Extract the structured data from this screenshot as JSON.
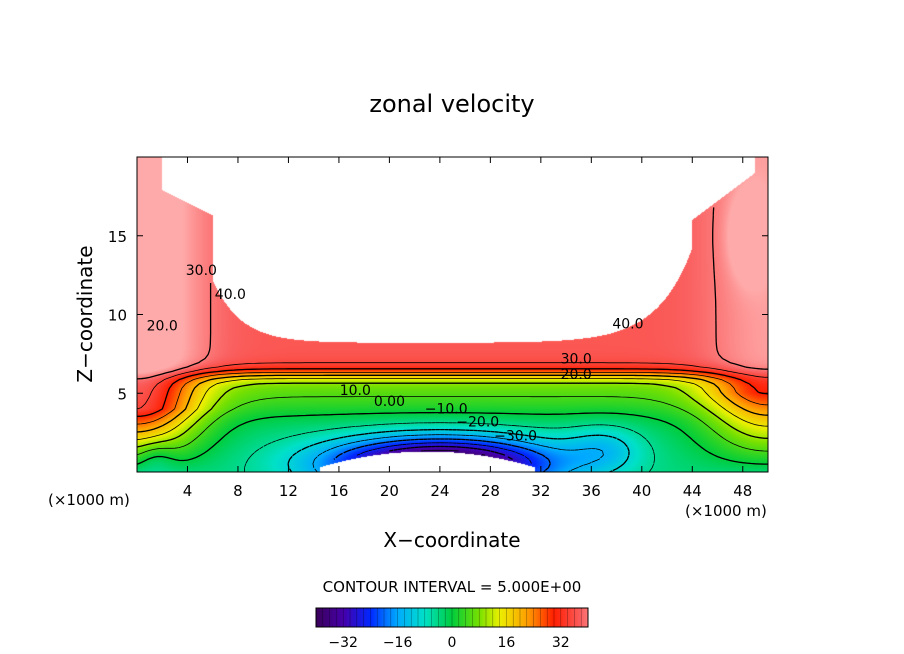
{
  "chart_data": {
    "type": "contour",
    "title": "zonal velocity",
    "xlabel": "X−coordinate",
    "ylabel": "Z−coordinate",
    "x_unit_left": "(×1000 m)",
    "x_unit_right": "(×1000 m)",
    "xlim": [
      0,
      50
    ],
    "ylim": [
      0,
      20
    ],
    "x_ticks": [
      4,
      8,
      12,
      16,
      20,
      24,
      28,
      32,
      36,
      40,
      44,
      48
    ],
    "y_ticks": [
      5,
      10,
      15
    ],
    "contour_interval_text": "CONTOUR INTERVAL = 5.000E+00",
    "colorbar": {
      "min": -40,
      "max": 40,
      "ticks": [
        -32,
        -16,
        0,
        16,
        32
      ]
    },
    "contour_labels": [
      {
        "text": "30.0",
        "x": 5.1,
        "z": 12.5
      },
      {
        "text": "40.0",
        "x": 7.4,
        "z": 11.0
      },
      {
        "text": "20.0",
        "x": 2.0,
        "z": 9.0
      },
      {
        "text": "40.0",
        "x": 38.9,
        "z": 9.1
      },
      {
        "text": "30.0",
        "x": 34.8,
        "z": 6.9
      },
      {
        "text": "20.0",
        "x": 34.8,
        "z": 5.9
      },
      {
        "text": "10.0",
        "x": 17.3,
        "z": 4.9
      },
      {
        "text": "0.00",
        "x": 20.0,
        "z": 4.2
      },
      {
        "text": "−10.0",
        "x": 24.5,
        "z": 3.7
      },
      {
        "text": "−20.0",
        "x": 27.0,
        "z": 2.9
      },
      {
        "text": "−30.0",
        "x": 30.0,
        "z": 2.0
      }
    ]
  }
}
